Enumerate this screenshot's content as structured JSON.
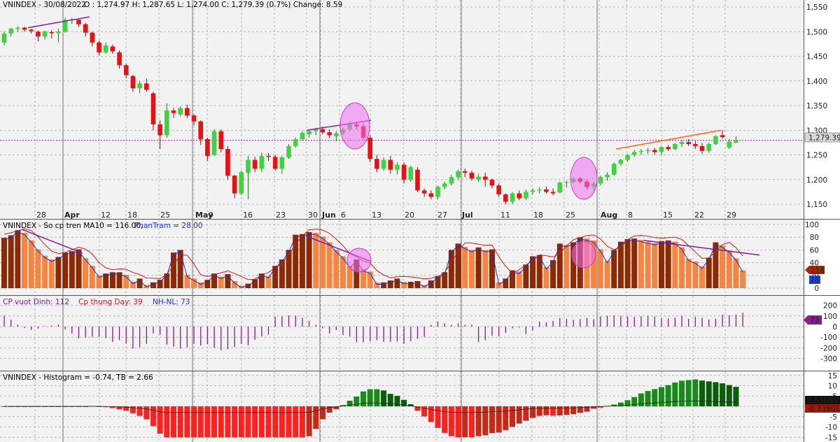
{
  "colors": {
    "up": "#3fd33f",
    "down": "#e81010",
    "ma": "#d01a1a",
    "pct": "#2030c8",
    "purple": "#8b1a8b",
    "dark_bar": "#8b2a00",
    "light_bar": "#f58540",
    "hist_up": "#1a8a1a",
    "hist_up2": "#0b5c0b",
    "hist_down": "#c82818",
    "hist_down2": "#ff2020",
    "ref_line": "#8020a0",
    "orange_line": "#ff6a1a",
    "ellipse": "#f070f0"
  },
  "panel1": {
    "title": "VNINDEX - 30/08/2022",
    "ohlc": "O : 1,274.97  H: 1,287.65  L: 1,274.00  C: 1,279.39  (0.7%)  Change: 8.59",
    "last_value_label": "1,279.39",
    "y_ticks": [
      "1,550",
      "1,500",
      "1,450",
      "1,400",
      "1,350",
      "1,300",
      "1,250",
      "1,200",
      "1,150"
    ]
  },
  "panel2": {
    "title_part1": "VNINDEX - So cp tren MA10 = 116.00,",
    "title_part2": "PhanTram = 28.00",
    "badge_count": "116",
    "badge_pct": "28",
    "y_ticks": [
      "100",
      "80",
      "60",
      "40",
      "20",
      "0"
    ]
  },
  "panel3": {
    "title_part1": "CP vuot Dinh: 112",
    "title_part2": "Cp thung Day: 39",
    "title_part3": "NH-NL: 73",
    "badge": "73",
    "y_ticks": [
      "200",
      "100",
      "0",
      "-100",
      "-200",
      "-300"
    ]
  },
  "panel4": {
    "title": "VNINDEX - Histogram = -0.74, TB = 2.66",
    "badge_tb": "2.65665",
    "badge_hist": "-0.73901",
    "y_ticks": [
      "15",
      "10",
      "5",
      "0",
      "-5",
      "-10",
      "-15"
    ]
  },
  "x_axis": {
    "labels": [
      "28",
      "Apr",
      "12",
      "18",
      "25",
      "May",
      "9",
      "16",
      "23",
      "30",
      "Jun",
      "6",
      "13",
      "20",
      "27",
      "Jul",
      "11",
      "18",
      "25",
      "Aug",
      "8",
      "15",
      "22",
      "29"
    ],
    "bold": [
      "Apr",
      "May",
      "Jun",
      "Jul",
      "Aug"
    ]
  },
  "chart_data": {
    "type": "candlestick",
    "symbol": "VNINDEX",
    "title": "VNINDEX - 30/08/2022",
    "ylim": [
      1130,
      1560
    ],
    "dates_axis_labels": [
      "28",
      "Apr",
      "12",
      "18",
      "25",
      "May",
      "9",
      "16",
      "23",
      "30",
      "Jun",
      "6",
      "13",
      "20",
      "27",
      "Jul",
      "11",
      "18",
      "25",
      "Aug",
      "8",
      "15",
      "22",
      "29"
    ],
    "candles": [
      [
        1478,
        1500,
        1472,
        1496
      ],
      [
        1496,
        1508,
        1490,
        1506
      ],
      [
        1506,
        1511,
        1500,
        1508
      ],
      [
        1508,
        1510,
        1500,
        1504
      ],
      [
        1504,
        1506,
        1496,
        1501
      ],
      [
        1500,
        1502,
        1480,
        1490
      ],
      [
        1490,
        1502,
        1484,
        1500
      ],
      [
        1499,
        1503,
        1486,
        1497
      ],
      [
        1497,
        1506,
        1478,
        1500
      ],
      [
        1500,
        1528,
        1498,
        1524
      ],
      [
        1524,
        1528,
        1516,
        1525
      ],
      [
        1524,
        1527,
        1510,
        1515
      ],
      [
        1515,
        1518,
        1490,
        1498
      ],
      [
        1498,
        1500,
        1470,
        1478
      ],
      [
        1478,
        1482,
        1452,
        1458
      ],
      [
        1458,
        1478,
        1455,
        1472
      ],
      [
        1470,
        1474,
        1455,
        1460
      ],
      [
        1458,
        1462,
        1425,
        1432
      ],
      [
        1432,
        1435,
        1405,
        1412
      ],
      [
        1410,
        1412,
        1378,
        1385
      ],
      [
        1385,
        1400,
        1375,
        1395
      ],
      [
        1395,
        1405,
        1378,
        1382
      ],
      [
        1375,
        1378,
        1300,
        1312
      ],
      [
        1312,
        1320,
        1262,
        1290
      ],
      [
        1290,
        1355,
        1285,
        1340
      ],
      [
        1340,
        1345,
        1325,
        1335
      ],
      [
        1332,
        1348,
        1328,
        1345
      ],
      [
        1345,
        1352,
        1325,
        1330
      ],
      [
        1330,
        1332,
        1310,
        1318
      ],
      [
        1318,
        1320,
        1270,
        1282
      ],
      [
        1282,
        1285,
        1238,
        1248
      ],
      [
        1250,
        1302,
        1248,
        1298
      ],
      [
        1298,
        1302,
        1255,
        1262
      ],
      [
        1262,
        1268,
        1200,
        1208
      ],
      [
        1208,
        1210,
        1162,
        1172
      ],
      [
        1172,
        1218,
        1168,
        1215
      ],
      [
        1214,
        1248,
        1160,
        1240
      ],
      [
        1240,
        1246,
        1215,
        1222
      ],
      [
        1222,
        1255,
        1215,
        1248
      ],
      [
        1248,
        1254,
        1238,
        1246
      ],
      [
        1246,
        1250,
        1218,
        1222
      ],
      [
        1222,
        1248,
        1212,
        1245
      ],
      [
        1245,
        1272,
        1242,
        1268
      ],
      [
        1268,
        1285,
        1265,
        1282
      ],
      [
        1282,
        1298,
        1280,
        1295
      ],
      [
        1292,
        1300,
        1285,
        1298
      ],
      [
        1298,
        1305,
        1290,
        1302
      ],
      [
        1302,
        1308,
        1292,
        1296
      ],
      [
        1296,
        1302,
        1284,
        1290
      ],
      [
        1288,
        1298,
        1278,
        1294
      ],
      [
        1294,
        1305,
        1290,
        1302
      ],
      [
        1302,
        1318,
        1298,
        1312
      ],
      [
        1312,
        1316,
        1302,
        1308
      ],
      [
        1308,
        1314,
        1280,
        1285
      ],
      [
        1285,
        1290,
        1235,
        1242
      ],
      [
        1242,
        1250,
        1215,
        1222
      ],
      [
        1222,
        1245,
        1218,
        1240
      ],
      [
        1240,
        1248,
        1212,
        1220
      ],
      [
        1220,
        1235,
        1210,
        1230
      ],
      [
        1230,
        1235,
        1192,
        1200
      ],
      [
        1200,
        1228,
        1195,
        1225
      ],
      [
        1220,
        1225,
        1175,
        1178
      ],
      [
        1178,
        1182,
        1165,
        1172
      ],
      [
        1172,
        1178,
        1160,
        1165
      ],
      [
        1165,
        1188,
        1160,
        1185
      ],
      [
        1185,
        1196,
        1180,
        1192
      ],
      [
        1192,
        1210,
        1188,
        1205
      ],
      [
        1205,
        1220,
        1200,
        1217
      ],
      [
        1217,
        1222,
        1205,
        1214
      ],
      [
        1214,
        1218,
        1198,
        1202
      ],
      [
        1200,
        1212,
        1195,
        1206
      ],
      [
        1206,
        1214,
        1186,
        1200
      ],
      [
        1200,
        1202,
        1182,
        1188
      ],
      [
        1188,
        1192,
        1165,
        1170
      ],
      [
        1170,
        1172,
        1150,
        1155
      ],
      [
        1155,
        1175,
        1150,
        1172
      ],
      [
        1172,
        1178,
        1158,
        1162
      ],
      [
        1162,
        1180,
        1158,
        1175
      ],
      [
        1175,
        1182,
        1170,
        1178
      ],
      [
        1178,
        1185,
        1172,
        1180
      ],
      [
        1180,
        1186,
        1172,
        1175
      ],
      [
        1175,
        1182,
        1168,
        1172
      ],
      [
        1174,
        1196,
        1172,
        1194
      ],
      [
        1194,
        1198,
        1184,
        1195
      ],
      [
        1195,
        1205,
        1192,
        1202
      ],
      [
        1202,
        1205,
        1192,
        1196
      ],
      [
        1196,
        1200,
        1180,
        1185
      ],
      [
        1185,
        1195,
        1178,
        1192
      ],
      [
        1192,
        1208,
        1188,
        1205
      ],
      [
        1205,
        1215,
        1198,
        1210
      ],
      [
        1210,
        1235,
        1208,
        1232
      ],
      [
        1232,
        1242,
        1228,
        1240
      ],
      [
        1240,
        1252,
        1236,
        1250
      ],
      [
        1250,
        1260,
        1246,
        1256
      ],
      [
        1256,
        1262,
        1250,
        1258
      ],
      [
        1258,
        1264,
        1252,
        1260
      ],
      [
        1260,
        1264,
        1250,
        1256
      ],
      [
        1256,
        1268,
        1250,
        1266
      ],
      [
        1266,
        1270,
        1258,
        1262
      ],
      [
        1262,
        1274,
        1260,
        1272
      ],
      [
        1272,
        1280,
        1266,
        1276
      ],
      [
        1276,
        1282,
        1268,
        1272
      ],
      [
        1272,
        1278,
        1262,
        1268
      ],
      [
        1268,
        1274,
        1252,
        1258
      ],
      [
        1258,
        1275,
        1254,
        1272
      ],
      [
        1272,
        1290,
        1270,
        1288
      ],
      [
        1290,
        1300,
        1283,
        1286
      ],
      [
        1265,
        1282,
        1262,
        1277
      ],
      [
        1274.97,
        1287.65,
        1274,
        1279.39
      ]
    ],
    "breadth_pct_ma10": [
      79,
      83,
      91,
      87,
      75,
      61,
      51,
      45,
      49,
      56,
      58,
      61,
      47,
      35,
      20,
      23,
      25,
      25,
      21,
      10,
      15,
      5,
      9,
      13,
      23,
      56,
      60,
      21,
      15,
      9,
      13,
      23,
      18,
      22,
      11,
      4,
      7,
      14,
      23,
      19,
      35,
      45,
      60,
      84,
      85,
      88,
      87,
      81,
      72,
      60,
      50,
      35,
      45,
      30,
      26,
      9,
      9,
      12,
      15,
      10,
      10,
      11,
      5,
      12,
      19,
      25,
      60,
      70,
      65,
      60,
      64,
      60,
      61,
      9,
      15,
      28,
      26,
      37,
      50,
      52,
      33,
      44,
      70,
      68,
      72,
      80,
      78,
      75,
      61,
      43,
      60,
      73,
      77,
      78,
      76,
      73,
      71,
      74,
      75,
      73,
      64,
      46,
      42,
      34,
      48,
      72,
      67,
      59,
      47,
      28
    ]
  }
}
